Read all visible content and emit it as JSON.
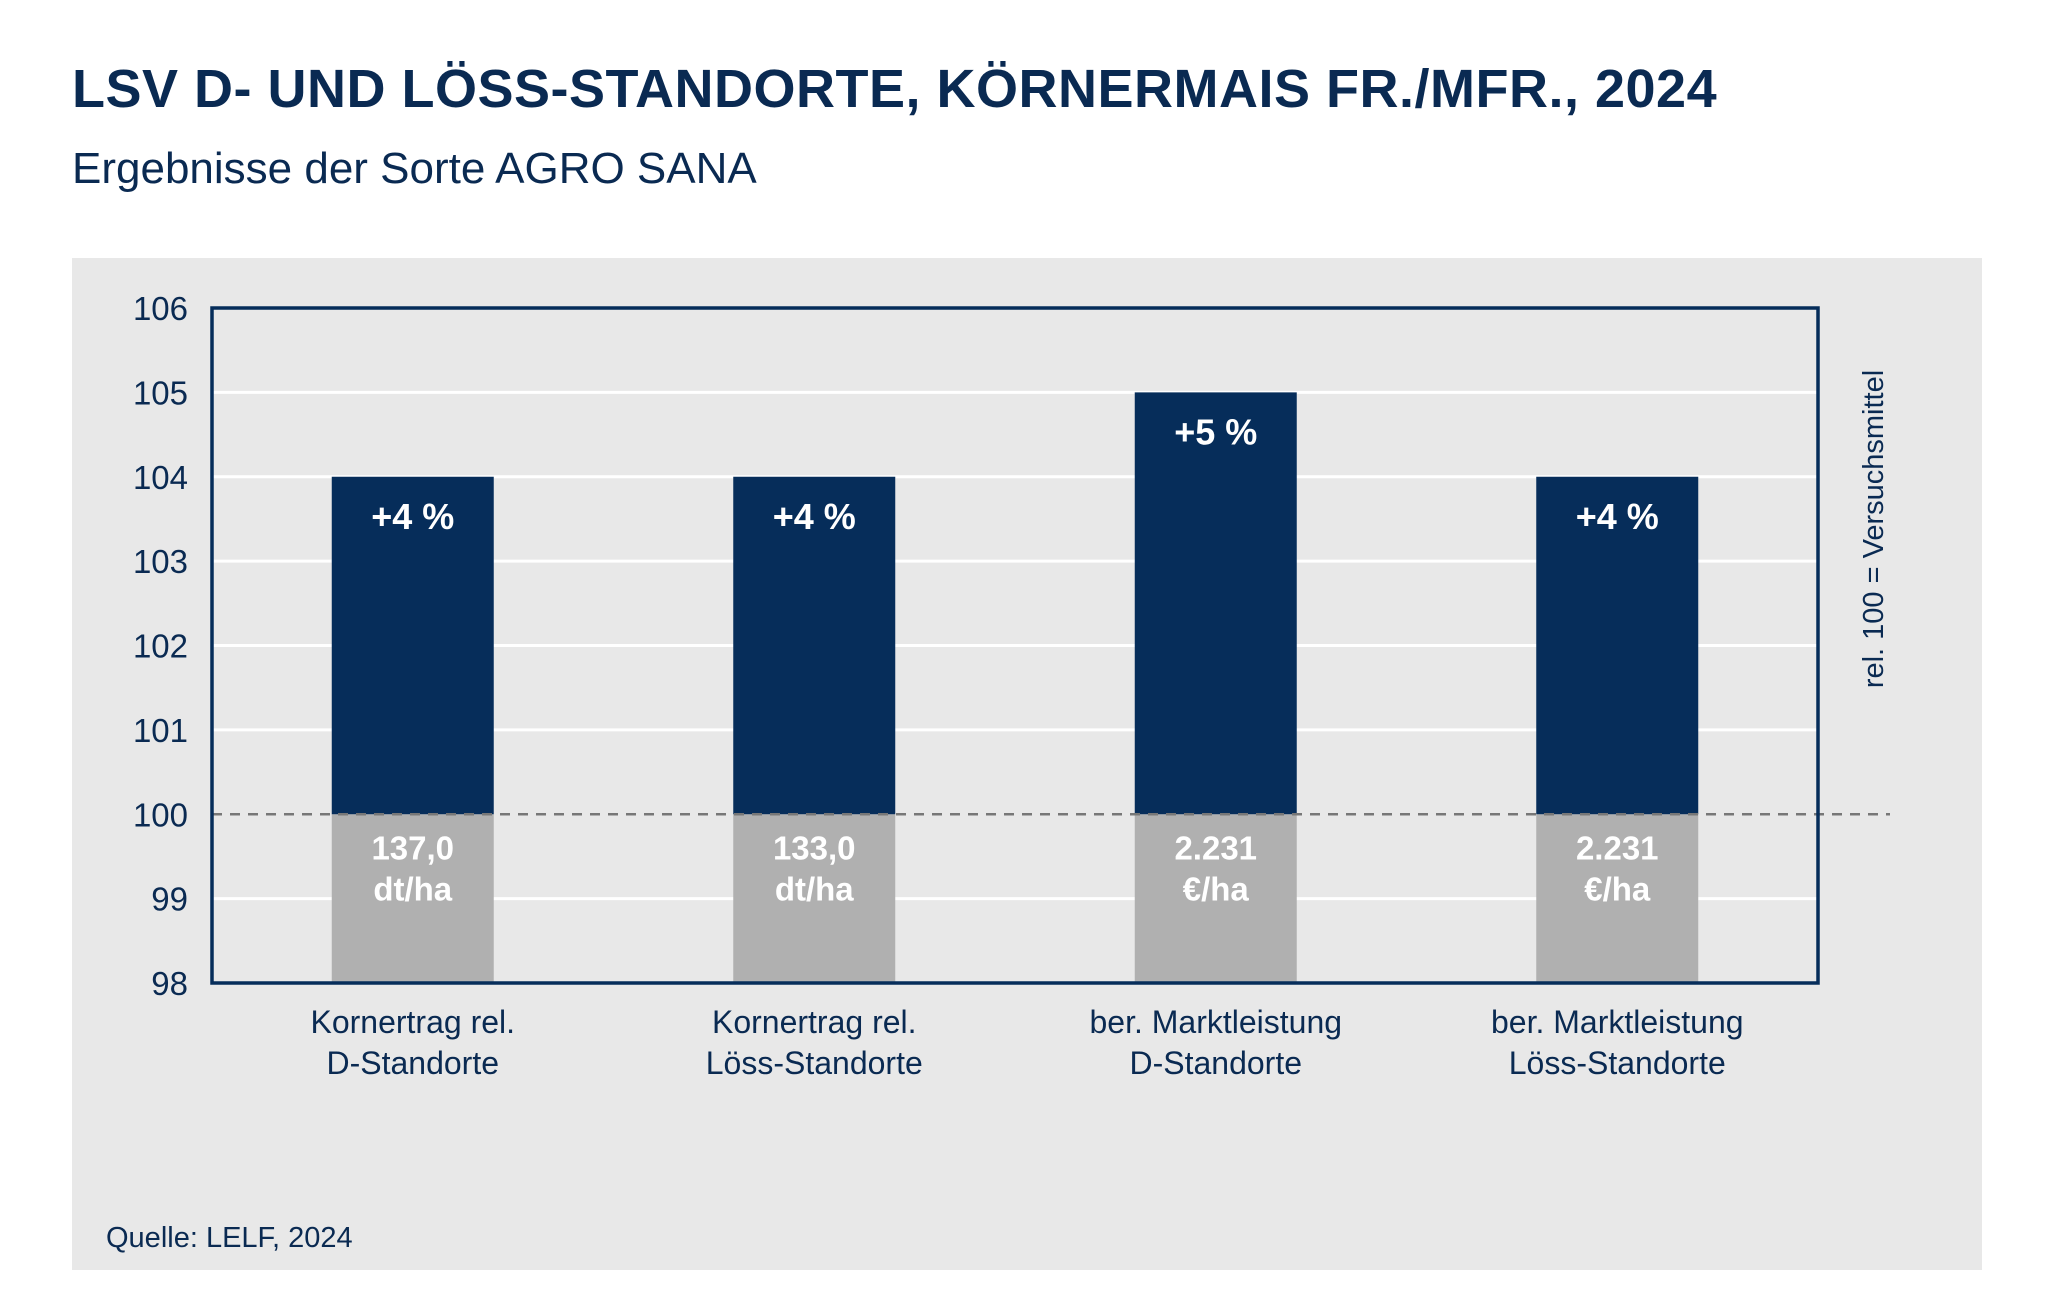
{
  "title": "LSV D- UND LÖSS-STANDORTE, KÖRNERMAIS FR./MFR., 2024",
  "subtitle": "Ergebnisse der Sorte AGRO SANA",
  "source": "Quelle: LELF, 2024",
  "colors": {
    "bar_top": "#062d5a",
    "bar_base": "#b0b0b0",
    "panel": "#e8e8e8",
    "text": "#0a2a52",
    "grid": "#ffffff"
  },
  "chart_data": {
    "type": "bar",
    "categories": [
      [
        "Kornertrag rel.",
        "D-Standorte"
      ],
      [
        "Kornertrag rel.",
        "Löss-Standorte"
      ],
      [
        "ber. Marktleistung",
        "D-Standorte"
      ],
      [
        "ber. Marktleistung",
        "Löss-Standorte"
      ]
    ],
    "values": [
      104,
      104,
      105,
      104
    ],
    "baseline": 100,
    "ylim": [
      98,
      106
    ],
    "yticks": [
      "98",
      "99",
      "100",
      "101",
      "102",
      "103",
      "104",
      "105",
      "106"
    ],
    "grid": true,
    "top_labels": [
      "+4 %",
      "+4 %",
      "+5 %",
      "+4 %"
    ],
    "base_labels": [
      [
        "137,0",
        "dt/ha"
      ],
      [
        "133,0",
        "dt/ha"
      ],
      [
        "2.231",
        "€/ha"
      ],
      [
        "2.231",
        "€/ha"
      ]
    ],
    "right_label": "rel. 100 = Versuchsmittel"
  }
}
